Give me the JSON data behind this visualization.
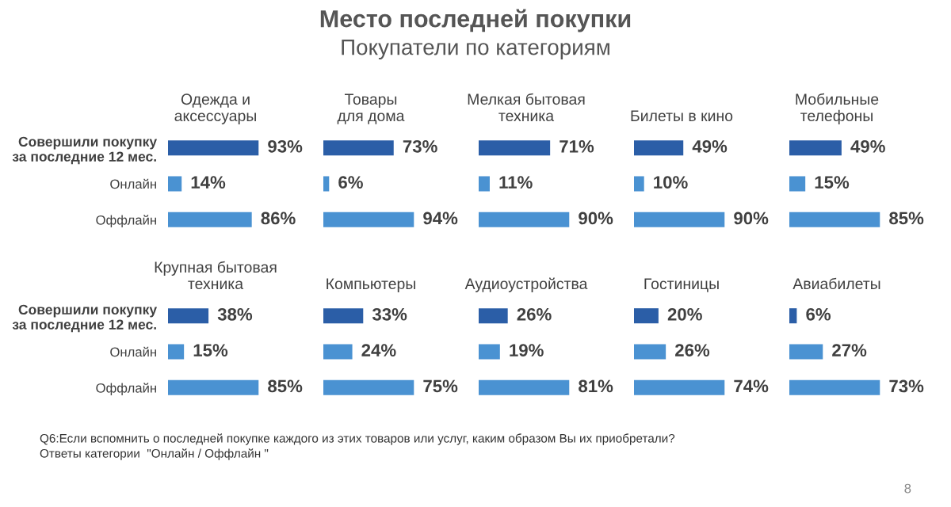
{
  "chart_data": [
    {
      "type": "other",
      "title": "Место последней покупки",
      "subtitle": "Покупатели по категориям"
    },
    {
      "type": "bar",
      "orientation": "horizontal",
      "title": "Одежда и\nаксессуары",
      "categories": [
        "Совершили покупку\nза последние 12 мес.",
        "Онлайн",
        "Оффлайн"
      ],
      "values": [
        93,
        14,
        86
      ],
      "value_labels": [
        "93%",
        "14%",
        "86%"
      ],
      "colors": [
        "#2b5ea7",
        "#4a92d2",
        "#4a92d2"
      ]
    },
    {
      "type": "bar",
      "orientation": "horizontal",
      "title": "Товары\nдля дома",
      "categories": [
        null,
        null,
        null
      ],
      "values": [
        73,
        6,
        94
      ],
      "value_labels": [
        "73%",
        "6%",
        "94%"
      ],
      "colors": [
        "#2b5ea7",
        "#4a92d2",
        "#4a92d2"
      ]
    },
    {
      "type": "bar",
      "orientation": "horizontal",
      "title": "Мелкая бытовая\nтехника",
      "categories": [
        null,
        null,
        null
      ],
      "values": [
        71,
        11,
        90
      ],
      "value_labels": [
        "71%",
        "11%",
        "90%"
      ],
      "colors": [
        "#2b5ea7",
        "#4a92d2",
        "#4a92d2"
      ]
    },
    {
      "type": "bar",
      "orientation": "horizontal",
      "title": "Билеты в кино",
      "categories": [
        null,
        null,
        null
      ],
      "values": [
        49,
        10,
        90
      ],
      "value_labels": [
        "49%",
        "10%",
        "90%"
      ],
      "colors": [
        "#2b5ea7",
        "#4a92d2",
        "#4a92d2"
      ]
    },
    {
      "type": "bar",
      "orientation": "horizontal",
      "title": "Мобильные\nтелефоны",
      "categories": [
        null,
        null,
        null
      ],
      "values": [
        49,
        15,
        85
      ],
      "value_labels": [
        "49%",
        "15%",
        "85%"
      ],
      "colors": [
        "#2b5ea7",
        "#4a92d2",
        "#4a92d2"
      ]
    },
    {
      "type": "bar",
      "orientation": "horizontal",
      "title": "Крупная бытовая\nтехника",
      "categories": [
        "Совершили покупку\nза последние 12 мес.",
        "Онлайн",
        "Оффлайн"
      ],
      "values": [
        38,
        15,
        85
      ],
      "value_labels": [
        "38%",
        "15%",
        "85%"
      ],
      "colors": [
        "#2b5ea7",
        "#4a92d2",
        "#4a92d2"
      ]
    },
    {
      "type": "bar",
      "orientation": "horizontal",
      "title": "Компьютеры",
      "categories": [
        null,
        null,
        null
      ],
      "values": [
        33,
        24,
        75
      ],
      "value_labels": [
        "33%",
        "24%",
        "75%"
      ],
      "colors": [
        "#2b5ea7",
        "#4a92d2",
        "#4a92d2"
      ]
    },
    {
      "type": "bar",
      "orientation": "horizontal",
      "title": "Аудиоустройства",
      "categories": [
        null,
        null,
        null
      ],
      "values": [
        26,
        19,
        81
      ],
      "value_labels": [
        "26%",
        "19%",
        "81%"
      ],
      "colors": [
        "#2b5ea7",
        "#4a92d2",
        "#4a92d2"
      ]
    },
    {
      "type": "bar",
      "orientation": "horizontal",
      "title": "Гостиницы",
      "categories": [
        null,
        null,
        null
      ],
      "values": [
        20,
        26,
        74
      ],
      "value_labels": [
        "20%",
        "26%",
        "74%"
      ],
      "colors": [
        "#2b5ea7",
        "#4a92d2",
        "#4a92d2"
      ]
    },
    {
      "type": "bar",
      "orientation": "horizontal",
      "title": "Авиабилеты",
      "categories": [
        null,
        null,
        null
      ],
      "values": [
        6,
        27,
        73
      ],
      "value_labels": [
        "6%",
        "27%",
        "73%"
      ],
      "colors": [
        "#2b5ea7",
        "#4a92d2",
        "#4a92d2"
      ]
    },
    {
      "type": "other",
      "annotations": [
        "Q6:Если вспомнить о последней покупке каждого из этих товаров или услуг, каким образом Вы их приобретали?\nОтветы категории  \"Онлайн / Оффлайн \"",
        "8"
      ]
    }
  ]
}
